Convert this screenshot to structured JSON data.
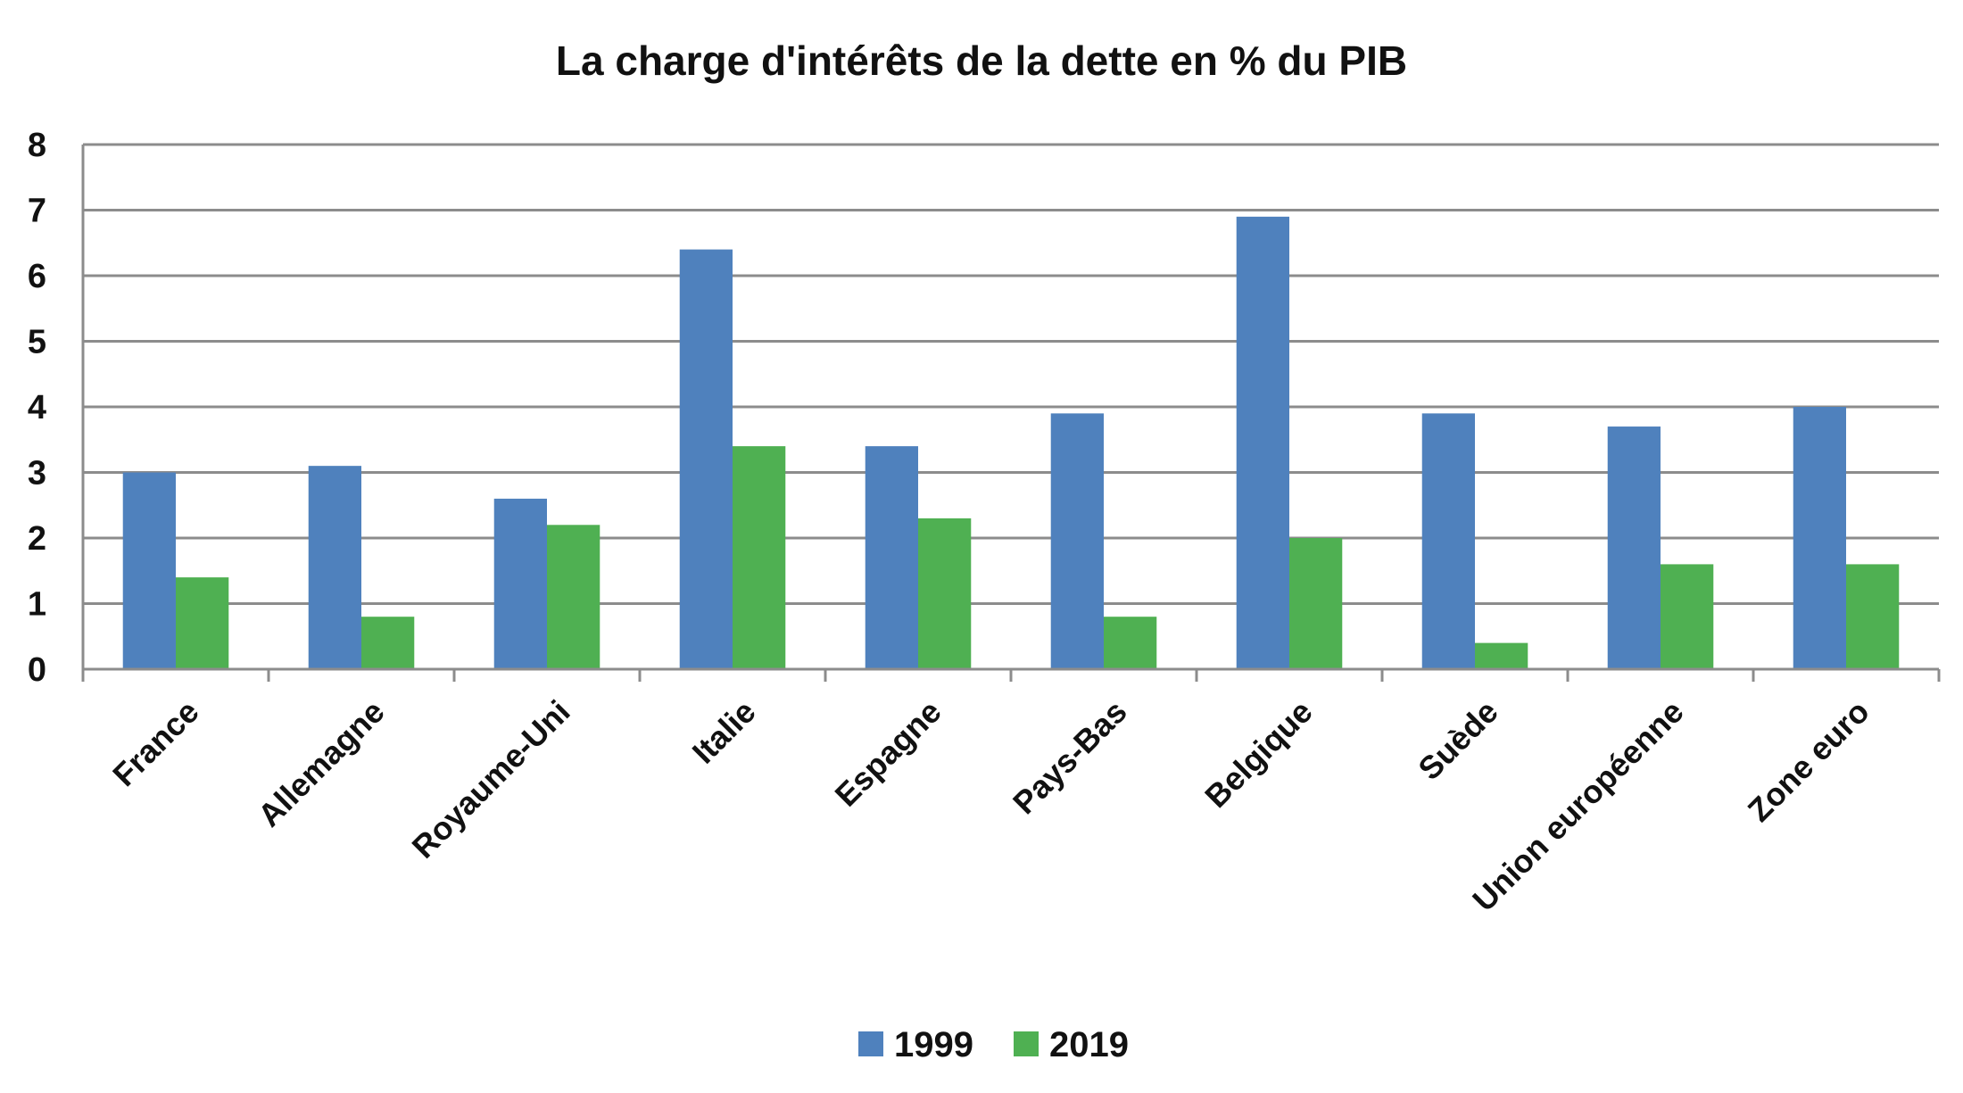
{
  "chart_data": {
    "type": "bar",
    "title": "La charge d'intérêts de la dette en % du PIB",
    "categories": [
      "France",
      "Allemagne",
      "Royaume-Uni",
      "Italie",
      "Espagne",
      "Pays-Bas",
      "Belgique",
      "Suède",
      "Union européenne",
      "Zone euro"
    ],
    "series": [
      {
        "name": "1999",
        "color": "#4f81bd",
        "values": [
          3.0,
          3.1,
          2.6,
          6.4,
          3.4,
          3.9,
          6.9,
          3.9,
          3.7,
          4.0
        ]
      },
      {
        "name": "2019",
        "color": "#4fb052",
        "values": [
          1.4,
          0.8,
          2.2,
          3.4,
          2.3,
          0.8,
          2.0,
          0.4,
          1.6,
          1.6
        ]
      }
    ],
    "ylim": [
      0,
      8
    ],
    "yticks": [
      "0",
      "1",
      "2",
      "3",
      "4",
      "5",
      "6",
      "7",
      "8"
    ],
    "grid": true,
    "legend_position": "bottom"
  }
}
